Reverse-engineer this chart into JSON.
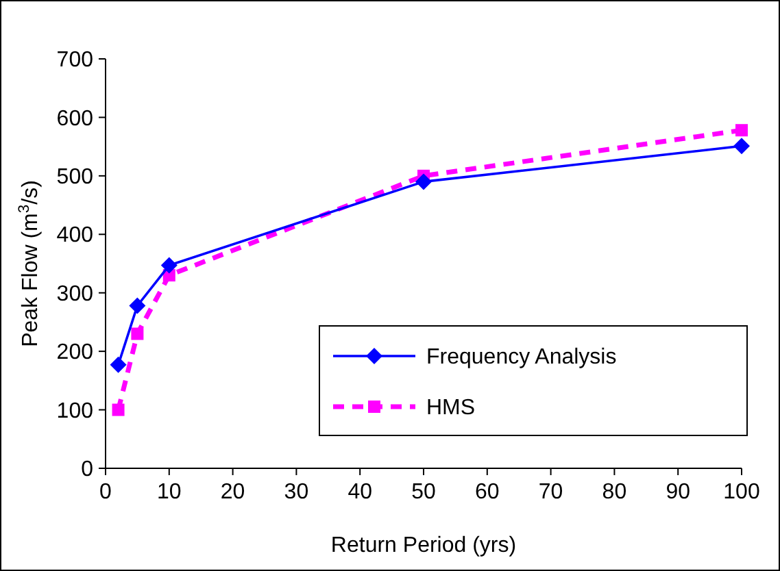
{
  "chart_data": {
    "type": "line",
    "xlabel": "Return Period (yrs)",
    "ylabel": "Peak Flow (m$^{3}$/s)",
    "xlim": [
      0,
      100
    ],
    "xticks": [
      0,
      10,
      20,
      30,
      40,
      50,
      60,
      70,
      80,
      90,
      100
    ],
    "ylim": [
      0,
      700
    ],
    "yticks": [
      0,
      100,
      200,
      300,
      400,
      500,
      600,
      700
    ],
    "grid": false,
    "legend": "bottom right",
    "series": [
      {
        "name": "Frequency Analysis",
        "color": "#0000ff",
        "x": [
          2,
          5,
          10,
          50,
          100
        ],
        "values": [
          177,
          278,
          347,
          490,
          551
        ],
        "marker": "diamond",
        "line_style": "solid"
      },
      {
        "name": "HMS",
        "color": "#ff00ff",
        "x": [
          2,
          5,
          10,
          50,
          100
        ],
        "values": [
          100,
          230,
          330,
          500,
          578
        ],
        "marker": "square",
        "line_style": "dashed"
      }
    ]
  }
}
